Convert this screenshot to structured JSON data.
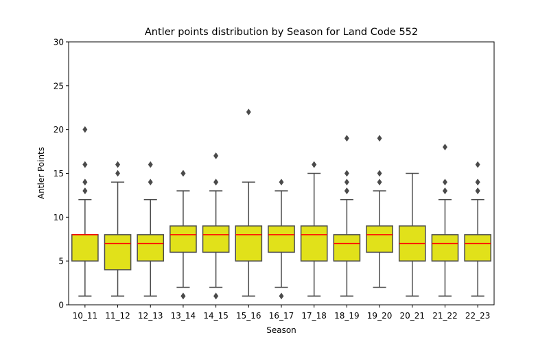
{
  "colors": {
    "box_fill": "#e1e11a",
    "box_edge": "#4a4a4a",
    "median": "#ff0000",
    "outlier": "#4a4a4a"
  },
  "chart_data": {
    "type": "box",
    "title": "Antler points distribution by Season for Land Code 552",
    "xlabel": "Season",
    "ylabel": "Antler Points",
    "ylim": [
      0,
      30
    ],
    "yticks": [
      0,
      5,
      10,
      15,
      20,
      25,
      30
    ],
    "grid": false,
    "categories": [
      "10_11",
      "11_12",
      "12_13",
      "13_14",
      "14_15",
      "15_16",
      "16_17",
      "17_18",
      "18_19",
      "19_20",
      "20_21",
      "21_22",
      "22_23"
    ],
    "boxes": [
      {
        "season": "10_11",
        "whisker_low": 1,
        "q1": 5,
        "median": 8,
        "q3": 8,
        "whisker_high": 12,
        "outliers": [
          13,
          13,
          14,
          14,
          16,
          16,
          20
        ]
      },
      {
        "season": "11_12",
        "whisker_low": 1,
        "q1": 4,
        "median": 7,
        "q3": 8,
        "whisker_high": 14,
        "outliers": [
          15,
          16,
          16
        ]
      },
      {
        "season": "12_13",
        "whisker_low": 1,
        "q1": 5,
        "median": 7,
        "q3": 8,
        "whisker_high": 12,
        "outliers": [
          14,
          16
        ]
      },
      {
        "season": "13_14",
        "whisker_low": 2,
        "q1": 6,
        "median": 8,
        "q3": 9,
        "whisker_high": 13,
        "outliers": [
          1,
          1,
          15,
          15
        ]
      },
      {
        "season": "14_15",
        "whisker_low": 2,
        "q1": 6,
        "median": 8,
        "q3": 9,
        "whisker_high": 13,
        "outliers": [
          1,
          1,
          14,
          14,
          17,
          17
        ]
      },
      {
        "season": "15_16",
        "whisker_low": 1,
        "q1": 5,
        "median": 8,
        "q3": 9,
        "whisker_high": 14,
        "outliers": [
          22
        ]
      },
      {
        "season": "16_17",
        "whisker_low": 2,
        "q1": 6,
        "median": 8,
        "q3": 9,
        "whisker_high": 13,
        "outliers": [
          1,
          14
        ]
      },
      {
        "season": "17_18",
        "whisker_low": 1,
        "q1": 5,
        "median": 8,
        "q3": 9,
        "whisker_high": 15,
        "outliers": [
          16,
          16
        ]
      },
      {
        "season": "18_19",
        "whisker_low": 1,
        "q1": 5,
        "median": 7,
        "q3": 8,
        "whisker_high": 12,
        "outliers": [
          13,
          13,
          14,
          15,
          19
        ]
      },
      {
        "season": "19_20",
        "whisker_low": 2,
        "q1": 6,
        "median": 8,
        "q3": 9,
        "whisker_high": 13,
        "outliers": [
          14,
          15,
          19
        ]
      },
      {
        "season": "20_21",
        "whisker_low": 1,
        "q1": 5,
        "median": 7,
        "q3": 9,
        "whisker_high": 15,
        "outliers": []
      },
      {
        "season": "21_22",
        "whisker_low": 1,
        "q1": 5,
        "median": 7,
        "q3": 8,
        "whisker_high": 12,
        "outliers": [
          13,
          13,
          14,
          18
        ]
      },
      {
        "season": "22_23",
        "whisker_low": 1,
        "q1": 5,
        "median": 7,
        "q3": 8,
        "whisker_high": 12,
        "outliers": [
          13,
          13,
          14,
          14,
          16
        ]
      }
    ]
  }
}
